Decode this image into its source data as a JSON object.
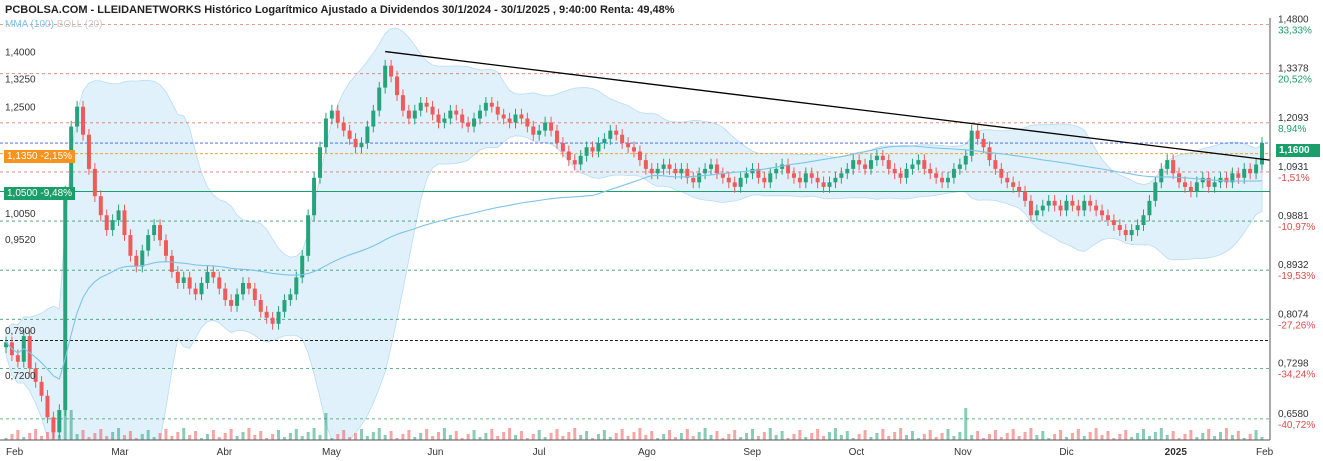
{
  "header": {
    "title": "PCBOLSA.COM - LLEIDANETWORKS Histórico Logarítmico Ajustado a Dividendos 30/1/2024 - 30/1/2025 , 9:40:00 Renta: 49,48%"
  },
  "legend": {
    "mma": "MMA (100)",
    "boll": "BOLL (20)"
  },
  "tags": {
    "left_orange": "1,1350 -2,15%",
    "left_green": "1,0500 -9,48%",
    "right_price": "1,1600"
  },
  "colors": {
    "up": "#26a37a",
    "down": "#ef5b5b",
    "band": "#d7ecfa",
    "mma": "#7cc4ea",
    "trend": "#000000",
    "orange": "#f7931e",
    "green": "#1a9e6a"
  },
  "chart_data": {
    "type": "candlestick",
    "scale": "log",
    "ylim": [
      0.63,
      1.5
    ],
    "x_months": [
      "Feb",
      "Mar",
      "Abr",
      "May",
      "Jun",
      "Jul",
      "Ago",
      "Sep",
      "Oct",
      "Nov",
      "Dic",
      "2025",
      "Feb"
    ],
    "left_ticks": [
      "1,4000",
      "1,3250",
      "1,2500",
      "1,0050",
      "0,9520",
      "0,7900",
      "0,7200"
    ],
    "right_levels": [
      {
        "price": "1,4800",
        "pct": "33,33%",
        "sign": "pos"
      },
      {
        "price": "1,3378",
        "pct": "20,52%",
        "sign": "pos"
      },
      {
        "price": "1,2093",
        "pct": "8,94%",
        "sign": "pos"
      },
      {
        "price": "1,0931",
        "pct": "-1,51%",
        "sign": "neg"
      },
      {
        "price": "0,9881",
        "pct": "-10,97%",
        "sign": "neg"
      },
      {
        "price": "0,8932",
        "pct": "-19,53%",
        "sign": "neg"
      },
      {
        "price": "0,8074",
        "pct": "-27,26%",
        "sign": "neg"
      },
      {
        "price": "0,7298",
        "pct": "-34,24%",
        "sign": "neg"
      },
      {
        "price": "0,6580",
        "pct": "-40,72%",
        "sign": "neg"
      }
    ],
    "series": [
      {
        "name": "LLEIDANETWORKS",
        "closes": [
          0.77,
          0.75,
          0.74,
          0.78,
          0.73,
          0.71,
          0.69,
          0.66,
          0.64,
          0.67,
          1.05,
          1.2,
          1.25,
          1.18,
          1.1,
          1.04,
          1.0,
          0.97,
          0.99,
          1.01,
          0.96,
          0.92,
          0.9,
          0.93,
          0.96,
          0.98,
          0.95,
          0.92,
          0.89,
          0.87,
          0.88,
          0.86,
          0.85,
          0.87,
          0.89,
          0.88,
          0.86,
          0.84,
          0.83,
          0.85,
          0.87,
          0.86,
          0.84,
          0.82,
          0.81,
          0.8,
          0.82,
          0.84,
          0.85,
          0.88,
          0.92,
          1.0,
          1.08,
          1.15,
          1.22,
          1.24,
          1.21,
          1.19,
          1.17,
          1.15,
          1.16,
          1.2,
          1.24,
          1.3,
          1.36,
          1.33,
          1.28,
          1.24,
          1.22,
          1.24,
          1.26,
          1.25,
          1.23,
          1.21,
          1.22,
          1.24,
          1.23,
          1.21,
          1.2,
          1.22,
          1.24,
          1.26,
          1.25,
          1.23,
          1.22,
          1.21,
          1.23,
          1.22,
          1.2,
          1.18,
          1.19,
          1.21,
          1.19,
          1.16,
          1.14,
          1.12,
          1.11,
          1.13,
          1.15,
          1.14,
          1.16,
          1.17,
          1.19,
          1.18,
          1.16,
          1.15,
          1.14,
          1.12,
          1.1,
          1.09,
          1.1,
          1.11,
          1.1,
          1.09,
          1.1,
          1.08,
          1.07,
          1.09,
          1.1,
          1.11,
          1.09,
          1.08,
          1.07,
          1.06,
          1.08,
          1.09,
          1.1,
          1.08,
          1.07,
          1.09,
          1.1,
          1.11,
          1.09,
          1.08,
          1.07,
          1.09,
          1.08,
          1.07,
          1.06,
          1.07,
          1.08,
          1.09,
          1.1,
          1.12,
          1.11,
          1.1,
          1.12,
          1.13,
          1.12,
          1.1,
          1.09,
          1.08,
          1.1,
          1.11,
          1.12,
          1.1,
          1.09,
          1.08,
          1.07,
          1.08,
          1.1,
          1.11,
          1.13,
          1.19,
          1.17,
          1.15,
          1.12,
          1.1,
          1.08,
          1.07,
          1.06,
          1.05,
          1.03,
          1.0,
          1.01,
          1.02,
          1.03,
          1.02,
          1.01,
          1.03,
          1.02,
          1.01,
          1.03,
          1.02,
          1.01,
          1.0,
          0.99,
          0.98,
          0.97,
          0.96,
          0.97,
          0.98,
          1.0,
          1.03,
          1.07,
          1.1,
          1.12,
          1.09,
          1.07,
          1.06,
          1.05,
          1.07,
          1.08,
          1.06,
          1.07,
          1.08,
          1.07,
          1.09,
          1.08,
          1.1,
          1.09,
          1.11,
          1.16
        ]
      }
    ],
    "grid": false
  }
}
